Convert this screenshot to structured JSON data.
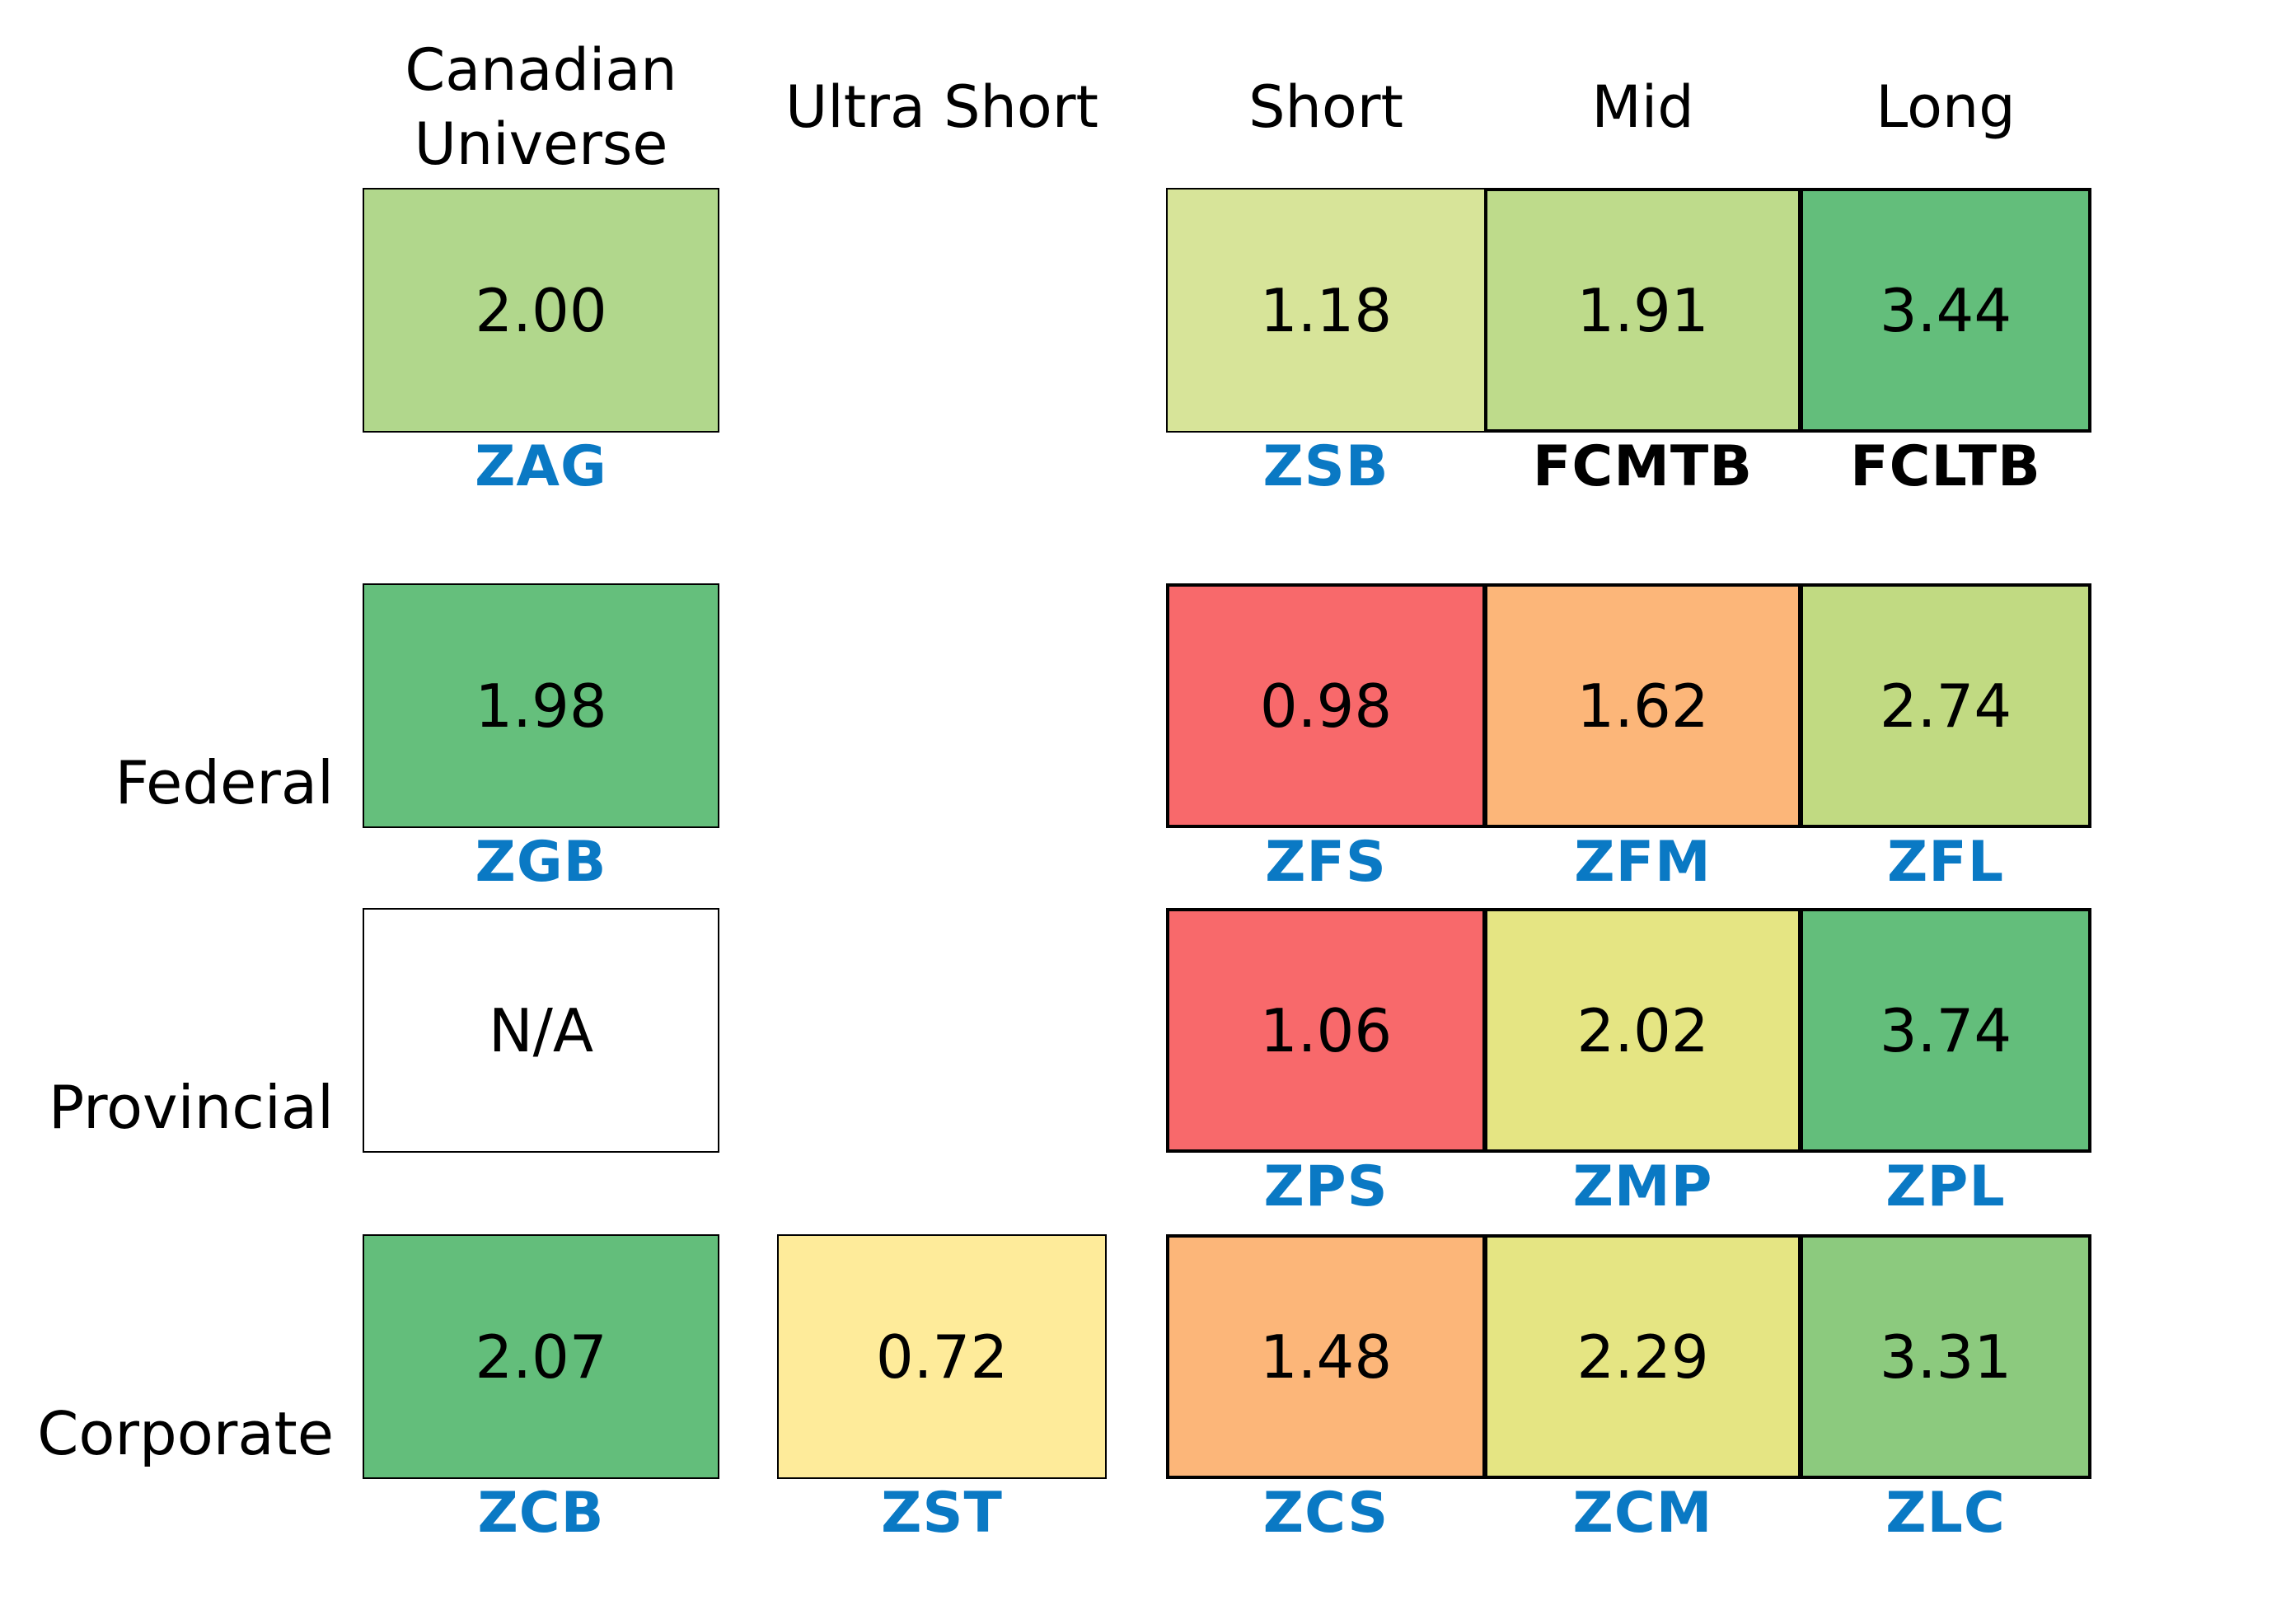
{
  "colors": {
    "ticker_link": "#0a79c4",
    "ticker_plain": "#000000",
    "cell_border": "#000000"
  },
  "chart_data": {
    "type": "heatmap",
    "columns": [
      "Canadian\nUniverse",
      "Ultra Short",
      "Short",
      "Mid",
      "Long"
    ],
    "rows": [
      "",
      "Federal",
      "Provincial",
      "Corporate"
    ],
    "cells": [
      [
        {
          "value": "2.00",
          "ticker": "ZAG",
          "ticker_style": "link",
          "color": "#b1d78c"
        },
        null,
        {
          "value": "1.18",
          "ticker": "ZSB",
          "ticker_style": "link",
          "color": "#d7e499"
        },
        {
          "value": "1.91",
          "ticker": "FCMTB",
          "ticker_style": "plain",
          "color": "#bedb8b"
        },
        {
          "value": "3.44",
          "ticker": "FCLTB",
          "ticker_style": "plain",
          "color": "#63be7b"
        }
      ],
      [
        {
          "value": "1.98",
          "ticker": "ZGB",
          "ticker_style": "link",
          "color": "#65bf7c"
        },
        null,
        {
          "value": "0.98",
          "ticker": "ZFS",
          "ticker_style": "link",
          "color": "#f8696b"
        },
        {
          "value": "1.62",
          "ticker": "ZFM",
          "ticker_style": "link",
          "color": "#fcb679"
        },
        {
          "value": "2.74",
          "ticker": "ZFL",
          "ticker_style": "link",
          "color": "#c1da82"
        }
      ],
      [
        {
          "value": "N/A",
          "ticker": "",
          "ticker_style": "link",
          "color": "#ffffff"
        },
        null,
        {
          "value": "1.06",
          "ticker": "ZPS",
          "ticker_style": "link",
          "color": "#f8696b"
        },
        {
          "value": "2.02",
          "ticker": "ZMP",
          "ticker_style": "link",
          "color": "#e5e583"
        },
        {
          "value": "3.74",
          "ticker": "ZPL",
          "ticker_style": "link",
          "color": "#63be7b"
        }
      ],
      [
        {
          "value": "2.07",
          "ticker": "ZCB",
          "ticker_style": "link",
          "color": "#63be7b"
        },
        {
          "value": "0.72",
          "ticker": "ZST",
          "ticker_style": "link",
          "color": "#feeb9a"
        },
        {
          "value": "1.48",
          "ticker": "ZCS",
          "ticker_style": "link",
          "color": "#fcb679"
        },
        {
          "value": "2.29",
          "ticker": "ZCM",
          "ticker_style": "link",
          "color": "#e5e583"
        },
        {
          "value": "3.31",
          "ticker": "ZLC",
          "ticker_style": "link",
          "color": "#8cca7e"
        }
      ]
    ]
  }
}
